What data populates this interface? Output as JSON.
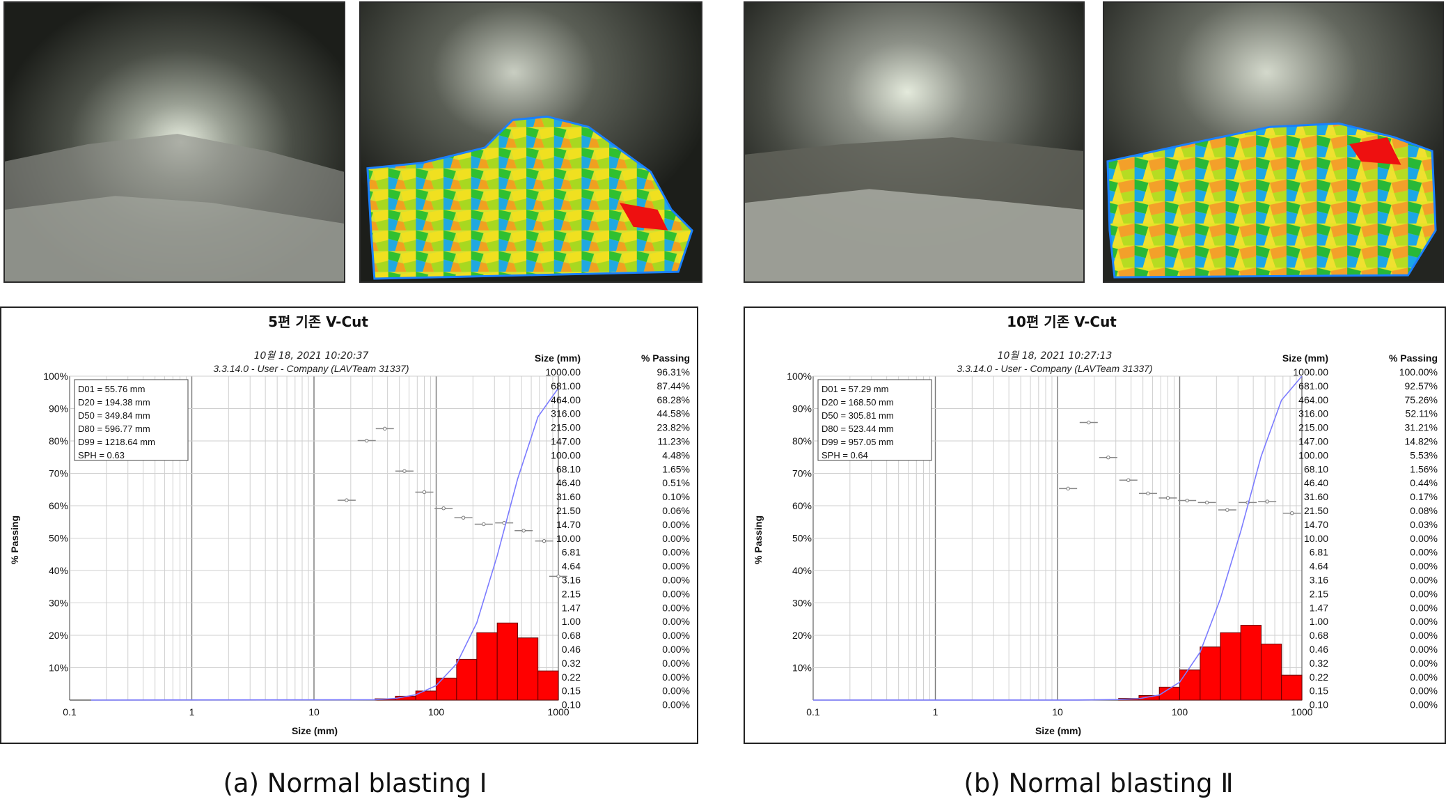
{
  "panels": [
    {
      "caption": "(a) Normal blasting Ⅰ",
      "photo_labels": [
        "tunnel-face-photo",
        "fragment-segmentation-overlay"
      ],
      "chart_data": {
        "type": "bar",
        "title": "5편 기존 V-Cut",
        "date_line": "10월 18, 2021 10:20:37",
        "version_line": "3.3.14.0  -  User - Company (LAVTeam 31337)",
        "xlabel": "Size (mm)",
        "ylabel": "% Passing",
        "x_scale": "log",
        "xlim": [
          0.1,
          1000
        ],
        "ylim": [
          0,
          100
        ],
        "x_ticks": [
          "0.1",
          "1",
          "10",
          "100",
          "1000"
        ],
        "y_ticks": [
          "10%",
          "20%",
          "30%",
          "40%",
          "50%",
          "60%",
          "70%",
          "80%",
          "90%",
          "100%"
        ],
        "stats": [
          "D01 = 55.76 mm",
          "D20 = 194.38 mm",
          "D50 = 349.84 mm",
          "D80 = 596.77 mm",
          "D99 = 1218.64 mm",
          "SPH = 0.63"
        ],
        "table_header": [
          "Size (mm)",
          "% Passing"
        ],
        "table": [
          [
            "1000.00",
            "96.31%"
          ],
          [
            "681.00",
            "87.44%"
          ],
          [
            "464.00",
            "68.28%"
          ],
          [
            "316.00",
            "44.58%"
          ],
          [
            "215.00",
            "23.82%"
          ],
          [
            "147.00",
            "11.23%"
          ],
          [
            "100.00",
            "4.48%"
          ],
          [
            "68.10",
            "1.65%"
          ],
          [
            "46.40",
            "0.51%"
          ],
          [
            "31.60",
            "0.10%"
          ],
          [
            "21.50",
            "0.06%"
          ],
          [
            "14.70",
            "0.00%"
          ],
          [
            "10.00",
            "0.00%"
          ],
          [
            "6.81",
            "0.00%"
          ],
          [
            "4.64",
            "0.00%"
          ],
          [
            "3.16",
            "0.00%"
          ],
          [
            "2.15",
            "0.00%"
          ],
          [
            "1.47",
            "0.00%"
          ],
          [
            "1.00",
            "0.00%"
          ],
          [
            "0.68",
            "0.00%"
          ],
          [
            "0.46",
            "0.00%"
          ],
          [
            "0.32",
            "0.00%"
          ],
          [
            "0.22",
            "0.00%"
          ],
          [
            "0.15",
            "0.00%"
          ],
          [
            "0.10",
            "0.00%"
          ]
        ],
        "curve": [
          [
            0.15,
            0
          ],
          [
            31.6,
            0.1
          ],
          [
            46.4,
            0.51
          ],
          [
            68.1,
            1.65
          ],
          [
            100,
            4.48
          ],
          [
            147,
            11.23
          ],
          [
            215,
            23.82
          ],
          [
            316,
            44.58
          ],
          [
            464,
            68.28
          ],
          [
            681,
            87.44
          ],
          [
            1000,
            96.31
          ]
        ],
        "bars": [
          [
            31.6,
            46.4,
            0.4
          ],
          [
            46.4,
            68.1,
            1.2
          ],
          [
            68.1,
            100,
            2.8
          ],
          [
            100,
            147,
            6.8
          ],
          [
            147,
            215,
            12.6
          ],
          [
            215,
            316,
            20.8
          ],
          [
            316,
            464,
            23.8
          ],
          [
            464,
            681,
            19.2
          ],
          [
            681,
            1000,
            9.0
          ]
        ],
        "points": [
          [
            18.5,
            61.7
          ],
          [
            27,
            80.1
          ],
          [
            38,
            83.8
          ],
          [
            55,
            70.7
          ],
          [
            80,
            64.2
          ],
          [
            115,
            59.2
          ],
          [
            167,
            56.3
          ],
          [
            245,
            54.3
          ],
          [
            360,
            54.7
          ],
          [
            520,
            52.3
          ],
          [
            765,
            49.1
          ],
          [
            1000,
            38.2
          ]
        ],
        "colors": {
          "bars": "#ff0000",
          "curve": "#7b7bff"
        }
      }
    },
    {
      "caption": "(b) Normal blasting Ⅱ",
      "photo_labels": [
        "tunnel-face-photo",
        "fragment-segmentation-overlay"
      ],
      "chart_data": {
        "type": "bar",
        "title": "10편 기존 V-Cut",
        "date_line": "10월 18, 2021 10:27:13",
        "version_line": "3.3.14.0  -  User - Company (LAVTeam 31337)",
        "xlabel": "Size (mm)",
        "ylabel": "% Passing",
        "x_scale": "log",
        "xlim": [
          0.1,
          1000
        ],
        "ylim": [
          0,
          100
        ],
        "x_ticks": [
          "0.1",
          "1",
          "10",
          "100",
          "1000"
        ],
        "y_ticks": [
          "10%",
          "20%",
          "30%",
          "40%",
          "50%",
          "60%",
          "70%",
          "80%",
          "90%",
          "100%"
        ],
        "stats": [
          "D01 = 57.29 mm",
          "D20 = 168.50 mm",
          "D50 = 305.81 mm",
          "D80 = 523.44 mm",
          "D99 = 957.05 mm",
          "SPH = 0.64"
        ],
        "table_header": [
          "Size (mm)",
          "% Passing"
        ],
        "table": [
          [
            "1000.00",
            "100.00%"
          ],
          [
            "681.00",
            "92.57%"
          ],
          [
            "464.00",
            "75.26%"
          ],
          [
            "316.00",
            "52.11%"
          ],
          [
            "215.00",
            "31.21%"
          ],
          [
            "147.00",
            "14.82%"
          ],
          [
            "100.00",
            "5.53%"
          ],
          [
            "68.10",
            "1.56%"
          ],
          [
            "46.40",
            "0.44%"
          ],
          [
            "31.60",
            "0.17%"
          ],
          [
            "21.50",
            "0.08%"
          ],
          [
            "14.70",
            "0.03%"
          ],
          [
            "10.00",
            "0.00%"
          ],
          [
            "6.81",
            "0.00%"
          ],
          [
            "4.64",
            "0.00%"
          ],
          [
            "3.16",
            "0.00%"
          ],
          [
            "2.15",
            "0.00%"
          ],
          [
            "1.47",
            "0.00%"
          ],
          [
            "1.00",
            "0.00%"
          ],
          [
            "0.68",
            "0.00%"
          ],
          [
            "0.46",
            "0.00%"
          ],
          [
            "0.32",
            "0.00%"
          ],
          [
            "0.22",
            "0.00%"
          ],
          [
            "0.15",
            "0.00%"
          ],
          [
            "0.10",
            "0.00%"
          ]
        ],
        "curve": [
          [
            0.1,
            0
          ],
          [
            14.7,
            0.03
          ],
          [
            21.5,
            0.08
          ],
          [
            31.6,
            0.17
          ],
          [
            46.4,
            0.44
          ],
          [
            68.1,
            1.56
          ],
          [
            100,
            5.53
          ],
          [
            147,
            14.82
          ],
          [
            215,
            31.21
          ],
          [
            316,
            52.11
          ],
          [
            464,
            75.26
          ],
          [
            681,
            92.57
          ],
          [
            1000,
            100
          ]
        ],
        "bars": [
          [
            31.6,
            46.4,
            0.5
          ],
          [
            46.4,
            68.1,
            1.4
          ],
          [
            68.1,
            100,
            4.0
          ],
          [
            100,
            147,
            9.3
          ],
          [
            147,
            215,
            16.4
          ],
          [
            215,
            316,
            20.8
          ],
          [
            316,
            464,
            23.1
          ],
          [
            464,
            681,
            17.3
          ],
          [
            681,
            1000,
            7.7
          ]
        ],
        "points": [
          [
            12.2,
            65.3
          ],
          [
            18,
            85.7
          ],
          [
            26,
            74.9
          ],
          [
            38,
            67.9
          ],
          [
            55,
            63.8
          ],
          [
            80,
            62.4
          ],
          [
            115,
            61.6
          ],
          [
            167,
            61.0
          ],
          [
            245,
            58.7
          ],
          [
            360,
            61.0
          ],
          [
            520,
            61.3
          ],
          [
            830,
            57.7
          ]
        ],
        "colors": {
          "bars": "#ff0000",
          "curve": "#7b7bff"
        }
      }
    }
  ]
}
